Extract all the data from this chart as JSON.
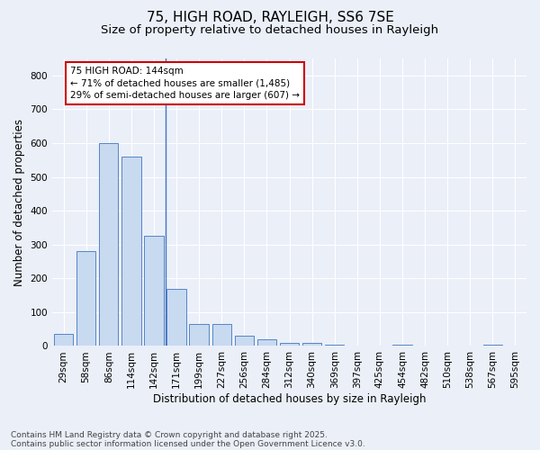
{
  "title": "75, HIGH ROAD, RAYLEIGH, SS6 7SE",
  "subtitle": "Size of property relative to detached houses in Rayleigh",
  "xlabel": "Distribution of detached houses by size in Rayleigh",
  "ylabel": "Number of detached properties",
  "categories": [
    "29sqm",
    "58sqm",
    "86sqm",
    "114sqm",
    "142sqm",
    "171sqm",
    "199sqm",
    "227sqm",
    "256sqm",
    "284sqm",
    "312sqm",
    "340sqm",
    "369sqm",
    "397sqm",
    "425sqm",
    "454sqm",
    "482sqm",
    "510sqm",
    "538sqm",
    "567sqm",
    "595sqm"
  ],
  "values": [
    35,
    280,
    600,
    560,
    325,
    170,
    65,
    65,
    30,
    20,
    10,
    10,
    5,
    0,
    0,
    5,
    0,
    0,
    0,
    5,
    0
  ],
  "bar_color": "#c8daf0",
  "bar_edge_color": "#5585c5",
  "vline_color": "#4472c4",
  "annotation_box_color": "#ffffff",
  "annotation_box_edge": "#cc0000",
  "marker_label_line1": "75 HIGH ROAD: 144sqm",
  "marker_label_line2": "← 71% of detached houses are smaller (1,485)",
  "marker_label_line3": "29% of semi-detached houses are larger (607) →",
  "bg_color": "#eaeff8",
  "plot_bg_color": "#eaeff8",
  "grid_color": "#ffffff",
  "footer1": "Contains HM Land Registry data © Crown copyright and database right 2025.",
  "footer2": "Contains public sector information licensed under the Open Government Licence v3.0.",
  "ylim": [
    0,
    850
  ],
  "yticks": [
    0,
    100,
    200,
    300,
    400,
    500,
    600,
    700,
    800
  ],
  "title_fontsize": 11,
  "subtitle_fontsize": 9.5,
  "axis_label_fontsize": 8.5,
  "tick_fontsize": 7.5,
  "annotation_fontsize": 7.5,
  "footer_fontsize": 6.5
}
